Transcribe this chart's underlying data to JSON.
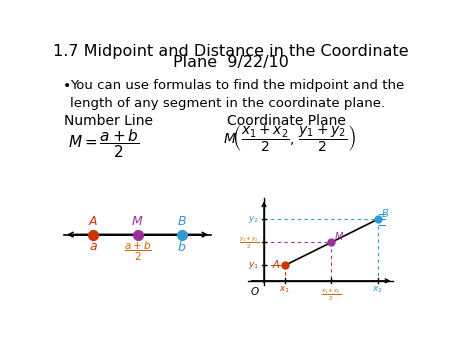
{
  "title_line1": "1.7 Midpoint and Distance in the Coordinate",
  "title_line2": "Plane  9/22/10",
  "bullet": "You can use formulas to find the midpoint and the\nlength of any segment in the coordinate plane.",
  "section_left": "Number Line",
  "section_right": "Coordinate Plane",
  "bg_color": "#ffffff",
  "title_fontsize": 11.5,
  "body_fontsize": 9.5,
  "section_fontsize": 10,
  "color_red": "#cc3300",
  "color_blue": "#3399cc",
  "color_purple": "#993399",
  "color_orange": "#cc6600"
}
